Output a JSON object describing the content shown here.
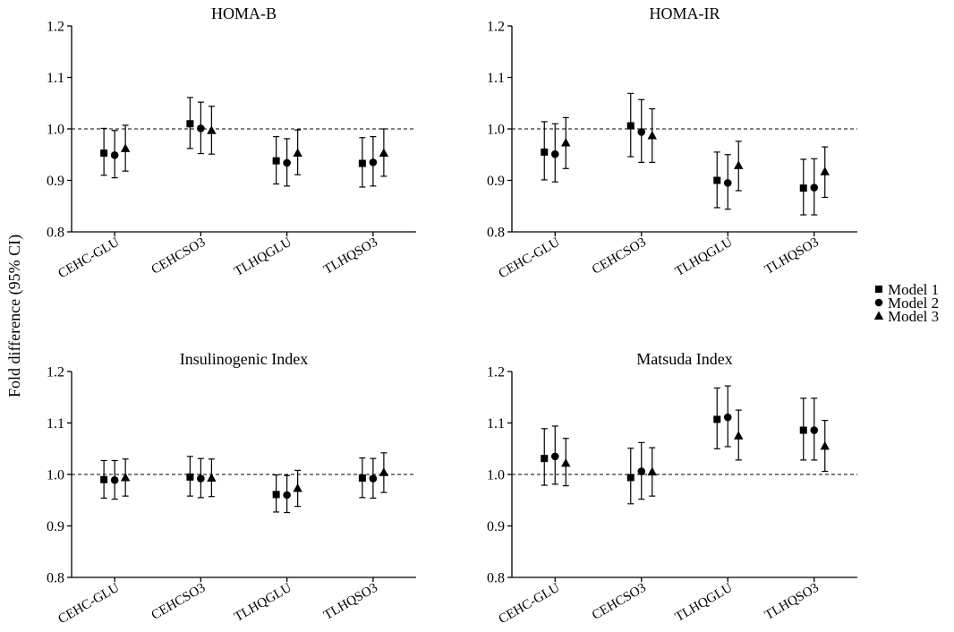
{
  "figure": {
    "ylabel": "Fold difference (95% CI)",
    "legend": {
      "placement": "right-center",
      "entries": [
        {
          "name": "Model 1",
          "marker": "square"
        },
        {
          "name": "Model 2",
          "marker": "circle"
        },
        {
          "name": "Model 3",
          "marker": "triangle"
        }
      ]
    }
  },
  "chart_data": [
    {
      "type": "scatter",
      "title": "HOMA-B",
      "categories": [
        "CEHC-GLU",
        "CEHCSO3",
        "TLHQGLU",
        "TLHQSO3"
      ],
      "ylim": [
        0.8,
        1.2
      ],
      "yticks": [
        "0.8",
        "0.9",
        "1.0",
        "1.1",
        "1.2"
      ],
      "reference_line": 1.0,
      "series": [
        {
          "name": "Model 1",
          "marker": "square",
          "values": [
            0.953,
            1.01,
            0.938,
            0.933
          ],
          "lower": [
            0.91,
            0.962,
            0.893,
            0.887
          ],
          "upper": [
            1.001,
            1.061,
            0.985,
            0.983
          ]
        },
        {
          "name": "Model 2",
          "marker": "circle",
          "values": [
            0.949,
            1.001,
            0.934,
            0.935
          ],
          "lower": [
            0.905,
            0.952,
            0.889,
            0.889
          ],
          "upper": [
            0.997,
            1.052,
            0.981,
            0.985
          ]
        },
        {
          "name": "Model 3",
          "marker": "triangle",
          "values": [
            0.962,
            0.997,
            0.953,
            0.953
          ],
          "lower": [
            0.918,
            0.951,
            0.911,
            0.908
          ],
          "upper": [
            1.007,
            1.044,
            0.998,
            1.0
          ]
        }
      ]
    },
    {
      "type": "scatter",
      "title": "HOMA-IR",
      "categories": [
        "CEHC-GLU",
        "CEHCSO3",
        "TLHQGLU",
        "TLHQSO3"
      ],
      "ylim": [
        0.8,
        1.2
      ],
      "yticks": [
        "0.8",
        "0.9",
        "1.0",
        "1.1",
        "1.2"
      ],
      "reference_line": 1.0,
      "series": [
        {
          "name": "Model 1",
          "marker": "square",
          "values": [
            0.955,
            1.006,
            0.9,
            0.885
          ],
          "lower": [
            0.901,
            0.946,
            0.847,
            0.833
          ],
          "upper": [
            1.014,
            1.069,
            0.955,
            0.941
          ]
        },
        {
          "name": "Model 2",
          "marker": "circle",
          "values": [
            0.951,
            0.994,
            0.895,
            0.886
          ],
          "lower": [
            0.897,
            0.935,
            0.844,
            0.833
          ],
          "upper": [
            1.01,
            1.057,
            0.95,
            0.942
          ]
        },
        {
          "name": "Model 3",
          "marker": "triangle",
          "values": [
            0.973,
            0.987,
            0.929,
            0.917
          ],
          "lower": [
            0.923,
            0.935,
            0.88,
            0.867
          ],
          "upper": [
            1.022,
            1.039,
            0.976,
            0.965
          ]
        }
      ]
    },
    {
      "type": "scatter",
      "title": "Insulinogenic Index",
      "categories": [
        "CEHC-GLU",
        "CEHCSO3",
        "TLHQGLU",
        "TLHQSO3"
      ],
      "ylim": [
        0.8,
        1.2
      ],
      "yticks": [
        "0.8",
        "0.9",
        "1.0",
        "1.1",
        "1.2"
      ],
      "reference_line": 1.0,
      "series": [
        {
          "name": "Model 1",
          "marker": "square",
          "values": [
            0.99,
            0.995,
            0.961,
            0.993
          ],
          "lower": [
            0.954,
            0.958,
            0.927,
            0.955
          ],
          "upper": [
            1.027,
            1.035,
            0.999,
            1.032
          ]
        },
        {
          "name": "Model 2",
          "marker": "circle",
          "values": [
            0.989,
            0.992,
            0.96,
            0.992
          ],
          "lower": [
            0.952,
            0.955,
            0.926,
            0.954
          ],
          "upper": [
            1.027,
            1.031,
            0.998,
            1.031
          ]
        },
        {
          "name": "Model 3",
          "marker": "triangle",
          "values": [
            0.994,
            0.993,
            0.973,
            1.004
          ],
          "lower": [
            0.958,
            0.957,
            0.938,
            0.965
          ],
          "upper": [
            1.03,
            1.03,
            1.008,
            1.042
          ]
        }
      ]
    },
    {
      "type": "scatter",
      "title": "Matsuda Index",
      "categories": [
        "CEHC-GLU",
        "CEHCSO3",
        "TLHQGLU",
        "TLHQSO3"
      ],
      "ylim": [
        0.8,
        1.2
      ],
      "yticks": [
        "0.8",
        "0.9",
        "1.0",
        "1.1",
        "1.2"
      ],
      "reference_line": 1.0,
      "series": [
        {
          "name": "Model 1",
          "marker": "square",
          "values": [
            1.031,
            0.994,
            1.107,
            1.086
          ],
          "lower": [
            0.979,
            0.943,
            1.05,
            1.028
          ],
          "upper": [
            1.089,
            1.051,
            1.168,
            1.148
          ]
        },
        {
          "name": "Model 2",
          "marker": "circle",
          "values": [
            1.035,
            1.006,
            1.111,
            1.086
          ],
          "lower": [
            0.981,
            0.952,
            1.054,
            1.028
          ],
          "upper": [
            1.094,
            1.062,
            1.172,
            1.148
          ]
        },
        {
          "name": "Model 3",
          "marker": "triangle",
          "values": [
            1.022,
            1.005,
            1.075,
            1.055
          ],
          "lower": [
            0.978,
            0.958,
            1.028,
            1.006
          ],
          "upper": [
            1.07,
            1.052,
            1.125,
            1.105
          ]
        }
      ]
    }
  ]
}
